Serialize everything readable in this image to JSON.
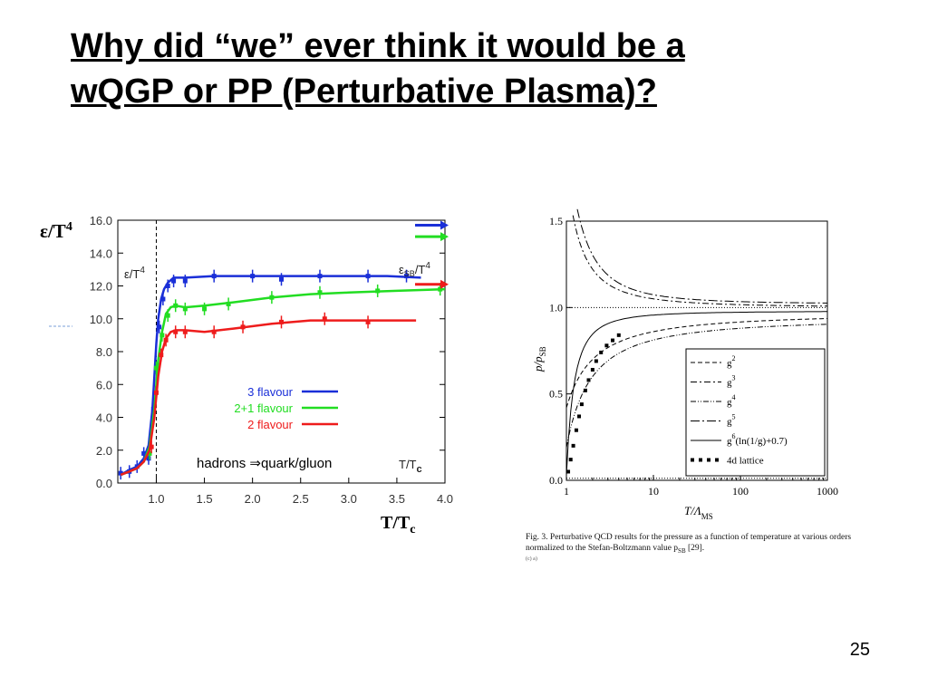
{
  "slide": {
    "title_line1": "Why did “we” ever think it would be a",
    "title_line2": "wQGP or PP (Perturbative Plasma)?",
    "page_number": "25"
  },
  "chart_data": [
    {
      "type": "line",
      "ylabel_main": "ε/T",
      "ylabel_main_sup": "4",
      "xlabel_main": "T/T",
      "xlabel_main_sub": "c",
      "inner_ylabel": "ε/T",
      "inner_ylabel_sup": "4",
      "sb_label": "ε",
      "sb_label_sub": "SB",
      "sb_label_rest": "/T",
      "sb_label_sup": "4",
      "inner_xlabel": "T/T",
      "inner_xlabel_sub": "c",
      "annotation": "hadrons ⇒quark/gluon",
      "xlim": [
        0.6,
        4.0
      ],
      "ylim": [
        0.0,
        16.0
      ],
      "x_ticks": [
        "1.0",
        "1.5",
        "2.0",
        "2.5",
        "3.0",
        "3.5",
        "4.0"
      ],
      "y_ticks": [
        "0.0",
        "2.0",
        "4.0",
        "6.0",
        "8.0",
        "10.0",
        "12.0",
        "14.0",
        "16.0"
      ],
      "series": [
        {
          "name": "3 flavour",
          "color": "#1a2fd8",
          "sb": 15.7,
          "x": [
            0.63,
            0.72,
            0.8,
            0.87,
            0.92,
            0.96,
            1.0,
            1.02,
            1.05,
            1.08,
            1.12,
            1.18,
            1.3,
            1.6,
            2.0,
            2.3,
            2.7,
            3.0,
            3.4,
            3.75
          ],
          "y": [
            0.5,
            0.8,
            1.0,
            1.5,
            2.3,
            4.5,
            8.5,
            10.0,
            11.2,
            11.8,
            12.2,
            12.5,
            12.5,
            12.6,
            12.6,
            12.6,
            12.6,
            12.6,
            12.6,
            12.5
          ],
          "points": [
            [
              0.63,
              0.6
            ],
            [
              0.72,
              0.7
            ],
            [
              0.8,
              1.0
            ],
            [
              0.87,
              1.8
            ],
            [
              0.92,
              1.5
            ],
            [
              0.97,
              4.5
            ],
            [
              1.03,
              9.5
            ],
            [
              1.07,
              11.2
            ],
            [
              1.12,
              12.0
            ],
            [
              1.18,
              12.3
            ],
            [
              1.3,
              12.3
            ],
            [
              1.6,
              12.6
            ],
            [
              2.0,
              12.6
            ],
            [
              2.3,
              12.4
            ],
            [
              2.7,
              12.6
            ],
            [
              3.2,
              12.6
            ],
            [
              3.6,
              12.6
            ]
          ]
        },
        {
          "name": "2+1 flavour",
          "color": "#22dd22",
          "sb": 15.0,
          "x": [
            0.63,
            0.72,
            0.8,
            0.87,
            0.93,
            0.98,
            1.02,
            1.06,
            1.1,
            1.15,
            1.2,
            1.3,
            1.5,
            1.8,
            2.2,
            2.6,
            3.0,
            3.5,
            4.0
          ],
          "y": [
            0.5,
            0.7,
            0.9,
            1.3,
            2.2,
            4.5,
            7.5,
            9.2,
            10.3,
            10.7,
            10.8,
            10.7,
            10.8,
            11.0,
            11.3,
            11.5,
            11.6,
            11.7,
            11.8
          ],
          "points": [
            [
              0.93,
              1.8
            ],
            [
              1.0,
              7.0
            ],
            [
              1.06,
              9.0
            ],
            [
              1.12,
              10.2
            ],
            [
              1.2,
              10.8
            ],
            [
              1.3,
              10.6
            ],
            [
              1.5,
              10.6
            ],
            [
              1.75,
              10.9
            ],
            [
              2.2,
              11.3
            ],
            [
              2.7,
              11.6
            ],
            [
              3.3,
              11.7
            ],
            [
              3.95,
              11.8
            ]
          ]
        },
        {
          "name": "2 flavour",
          "color": "#ee1c1c",
          "sb": 12.1,
          "x": [
            0.63,
            0.72,
            0.8,
            0.87,
            0.93,
            0.98,
            1.02,
            1.06,
            1.1,
            1.15,
            1.2,
            1.3,
            1.5,
            1.8,
            2.2,
            2.6,
            3.0,
            3.4,
            3.7
          ],
          "y": [
            0.5,
            0.7,
            0.9,
            1.3,
            2.0,
            4.0,
            6.5,
            8.0,
            8.8,
            9.2,
            9.3,
            9.3,
            9.2,
            9.4,
            9.7,
            9.9,
            9.9,
            9.9,
            9.9
          ],
          "points": [
            [
              0.95,
              2.2
            ],
            [
              1.0,
              5.5
            ],
            [
              1.05,
              7.8
            ],
            [
              1.1,
              8.7
            ],
            [
              1.2,
              9.2
            ],
            [
              1.3,
              9.2
            ],
            [
              1.6,
              9.2
            ],
            [
              1.9,
              9.5
            ],
            [
              2.3,
              9.8
            ],
            [
              2.75,
              10.0
            ],
            [
              3.2,
              9.8
            ]
          ]
        }
      ]
    },
    {
      "type": "line",
      "ylabel": "p/p",
      "ylabel_sub": "SB",
      "xlabel": "T/Λ",
      "xlabel_sub": "MS",
      "xscale": "log",
      "xlim": [
        1,
        1000
      ],
      "ylim": [
        0.0,
        1.5
      ],
      "x_ticks": [
        "1",
        "10",
        "100",
        "1000"
      ],
      "y_ticks": [
        "0.0",
        "0.5",
        "1.0",
        "1.5"
      ],
      "legend_position": "lower-right",
      "legend": [
        {
          "label": "g",
          "sup": "2",
          "style": "dashed"
        },
        {
          "label": "g",
          "sup": "3",
          "style": "dashdot"
        },
        {
          "label": "g",
          "sup": "4",
          "style": "dashdotdot"
        },
        {
          "label": "g",
          "sup": "5",
          "style": "longdashdot"
        },
        {
          "label": "g",
          "sup": "6",
          "rest": "(ln(1/g)+0.7)",
          "style": "solid"
        },
        {
          "label": "4d lattice",
          "sup": "",
          "style": "dots"
        }
      ],
      "caption": "Fig. 3. Perturbative QCD results for the pressure as a function of temperature at various orders normalized to the Stefan-Boltzmann value p",
      "caption_sub": "SB",
      "caption_end": " [29].",
      "caption_tail": "(c) a)"
    }
  ]
}
